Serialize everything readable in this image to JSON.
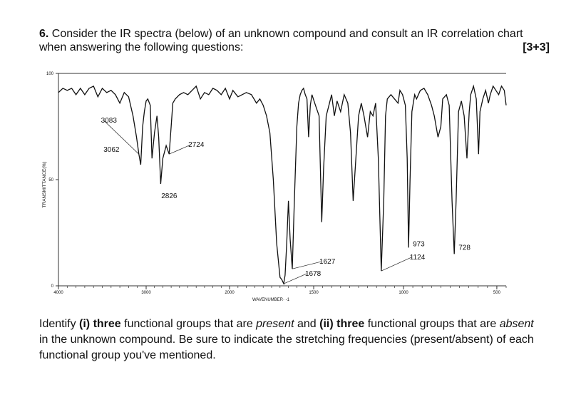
{
  "question": {
    "number": "6.",
    "text_line1": "Consider the IR spectra (below) of an unknown compound and consult an IR correlation chart",
    "text_line2": "when answering the following questions:",
    "points": "[3+3]"
  },
  "chart_data": {
    "type": "line",
    "title": "",
    "xlabel": "WAVENUMBER· -1",
    "ylabel": "TRANSMITTANCE(%)",
    "xlim": [
      4000,
      450
    ],
    "ylim": [
      0,
      100
    ],
    "x_ticks": [
      "4000",
      "3000",
      "2000",
      "1500",
      "1000",
      "500"
    ],
    "y_ticks": [
      "0",
      "50",
      "100"
    ],
    "series": [
      {
        "points": [
          [
            4000,
            91
          ],
          [
            3950,
            93
          ],
          [
            3900,
            92
          ],
          [
            3850,
            93
          ],
          [
            3800,
            90
          ],
          [
            3750,
            93
          ],
          [
            3700,
            90
          ],
          [
            3650,
            93
          ],
          [
            3600,
            94
          ],
          [
            3550,
            89
          ],
          [
            3500,
            93
          ],
          [
            3450,
            91
          ],
          [
            3400,
            92
          ],
          [
            3350,
            90
          ],
          [
            3300,
            86
          ],
          [
            3250,
            91
          ],
          [
            3200,
            89
          ],
          [
            3150,
            80
          ],
          [
            3110,
            70
          ],
          [
            3083,
            62
          ],
          [
            3062,
            57
          ],
          [
            3040,
            75
          ],
          [
            3020,
            82
          ],
          [
            3000,
            87
          ],
          [
            2980,
            88
          ],
          [
            2950,
            85
          ],
          [
            2930,
            60
          ],
          [
            2900,
            72
          ],
          [
            2870,
            80
          ],
          [
            2850,
            70
          ],
          [
            2826,
            48
          ],
          [
            2800,
            60
          ],
          [
            2760,
            66
          ],
          [
            2724,
            62
          ],
          [
            2700,
            75
          ],
          [
            2680,
            86
          ],
          [
            2650,
            88
          ],
          [
            2600,
            90
          ],
          [
            2550,
            91
          ],
          [
            2500,
            90
          ],
          [
            2450,
            92
          ],
          [
            2400,
            94
          ],
          [
            2350,
            88
          ],
          [
            2300,
            91
          ],
          [
            2250,
            90
          ],
          [
            2200,
            93
          ],
          [
            2150,
            92
          ],
          [
            2100,
            90
          ],
          [
            2050,
            93
          ],
          [
            2000,
            88
          ],
          [
            1980,
            92
          ],
          [
            1950,
            89
          ],
          [
            1900,
            91
          ],
          [
            1870,
            90
          ],
          [
            1840,
            86
          ],
          [
            1820,
            88
          ],
          [
            1800,
            85
          ],
          [
            1780,
            80
          ],
          [
            1760,
            72
          ],
          [
            1740,
            50
          ],
          [
            1720,
            20
          ],
          [
            1700,
            4
          ],
          [
            1690,
            3
          ],
          [
            1678,
            1
          ],
          [
            1670,
            5
          ],
          [
            1660,
            20
          ],
          [
            1650,
            40
          ],
          [
            1640,
            22
          ],
          [
            1627,
            8
          ],
          [
            1615,
            40
          ],
          [
            1600,
            75
          ],
          [
            1590,
            86
          ],
          [
            1580,
            90
          ],
          [
            1570,
            92
          ],
          [
            1560,
            93
          ],
          [
            1550,
            90
          ],
          [
            1540,
            88
          ],
          [
            1530,
            70
          ],
          [
            1520,
            85
          ],
          [
            1510,
            90
          ],
          [
            1490,
            85
          ],
          [
            1470,
            80
          ],
          [
            1455,
            30
          ],
          [
            1445,
            55
          ],
          [
            1430,
            80
          ],
          [
            1415,
            85
          ],
          [
            1400,
            90
          ],
          [
            1385,
            80
          ],
          [
            1370,
            87
          ],
          [
            1350,
            82
          ],
          [
            1330,
            90
          ],
          [
            1310,
            86
          ],
          [
            1295,
            72
          ],
          [
            1280,
            40
          ],
          [
            1265,
            60
          ],
          [
            1250,
            80
          ],
          [
            1235,
            86
          ],
          [
            1220,
            80
          ],
          [
            1200,
            70
          ],
          [
            1185,
            82
          ],
          [
            1170,
            80
          ],
          [
            1155,
            86
          ],
          [
            1140,
            60
          ],
          [
            1124,
            7
          ],
          [
            1110,
            40
          ],
          [
            1100,
            80
          ],
          [
            1090,
            88
          ],
          [
            1070,
            90
          ],
          [
            1050,
            88
          ],
          [
            1030,
            86
          ],
          [
            1020,
            92
          ],
          [
            1005,
            90
          ],
          [
            990,
            85
          ],
          [
            980,
            60
          ],
          [
            973,
            18
          ],
          [
            965,
            50
          ],
          [
            955,
            82
          ],
          [
            940,
            90
          ],
          [
            930,
            88
          ],
          [
            910,
            92
          ],
          [
            890,
            93
          ],
          [
            870,
            90
          ],
          [
            850,
            85
          ],
          [
            835,
            80
          ],
          [
            815,
            70
          ],
          [
            800,
            75
          ],
          [
            790,
            88
          ],
          [
            770,
            90
          ],
          [
            755,
            85
          ],
          [
            740,
            40
          ],
          [
            728,
            15
          ],
          [
            718,
            40
          ],
          [
            705,
            82
          ],
          [
            690,
            87
          ],
          [
            675,
            80
          ],
          [
            660,
            60
          ],
          [
            648,
            82
          ],
          [
            640,
            90
          ],
          [
            625,
            94
          ],
          [
            610,
            88
          ],
          [
            598,
            62
          ],
          [
            590,
            82
          ],
          [
            575,
            88
          ],
          [
            560,
            92
          ],
          [
            545,
            86
          ],
          [
            535,
            90
          ],
          [
            520,
            94
          ],
          [
            505,
            92
          ],
          [
            490,
            90
          ],
          [
            475,
            94
          ],
          [
            460,
            92
          ],
          [
            450,
            85
          ]
        ]
      }
    ],
    "annotations": [
      {
        "label": "3083",
        "x": 3083,
        "y": 62
      },
      {
        "label": "3062",
        "x": 3062,
        "y": 57
      },
      {
        "label": "2724",
        "x": 2724,
        "y": 62
      },
      {
        "label": "2826",
        "x": 2826,
        "y": 48
      },
      {
        "label": "1627",
        "x": 1627,
        "y": 8
      },
      {
        "label": "1678",
        "x": 1678,
        "y": 1
      },
      {
        "label": "973",
        "x": 973,
        "y": 18
      },
      {
        "label": "1124",
        "x": 1124,
        "y": 7
      },
      {
        "label": "728",
        "x": 728,
        "y": 15
      }
    ]
  },
  "footer": {
    "p1": "Identify ",
    "b1": "(i) three",
    "p2": " functional groups that are ",
    "i1": "present",
    "p3": " and ",
    "b2": "(ii) three",
    "p4": " functional groups that are ",
    "i2": "absent",
    "p5": " in the unknown compound. Be sure to indicate the stretching frequencies (present/absent) of each functional group you've mentioned."
  }
}
